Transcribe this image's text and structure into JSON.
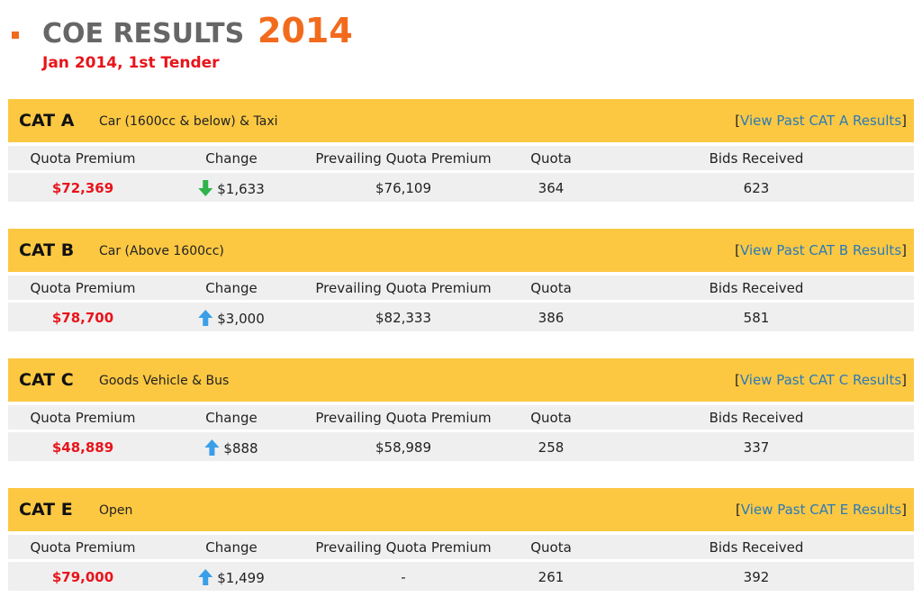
{
  "header": {
    "title": "COE RESULTS",
    "year": "2014",
    "subtitle": "Jan 2014, 1st Tender"
  },
  "bracket_open": "[",
  "bracket_close": "]",
  "columns": [
    "Quota Premium",
    "Change",
    "Prevailing Quota Premium",
    "Quota",
    "Bids Received"
  ],
  "categories": [
    {
      "code": "CAT A",
      "description": "Car (1600cc & below) & Taxi",
      "link": "View Past CAT A Results",
      "quota_premium": "$72,369",
      "direction": "down",
      "change": "$1,633",
      "prevailing": "$76,109",
      "quota": "364",
      "bids": "623"
    },
    {
      "code": "CAT B",
      "description": "Car (Above 1600cc)",
      "link": "View Past CAT B Results",
      "quota_premium": "$78,700",
      "direction": "up",
      "change": "$3,000",
      "prevailing": "$82,333",
      "quota": "386",
      "bids": "581"
    },
    {
      "code": "CAT C",
      "description": "Goods Vehicle & Bus",
      "link": "View Past CAT C Results",
      "quota_premium": "$48,889",
      "direction": "up",
      "change": "$888",
      "prevailing": "$58,989",
      "quota": "258",
      "bids": "337"
    },
    {
      "code": "CAT E",
      "description": "Open",
      "link": "View Past CAT E Results",
      "quota_premium": "$79,000",
      "direction": "up",
      "change": "$1,499",
      "prevailing": "-",
      "quota": "261",
      "bids": "392"
    }
  ]
}
